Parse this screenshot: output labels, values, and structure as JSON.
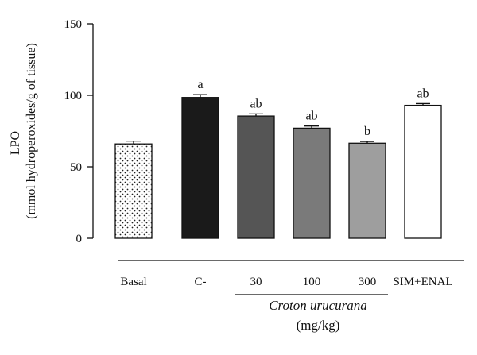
{
  "chart_data": {
    "type": "bar",
    "ylabel_line1": "LPO",
    "ylabel_line2": "(mmol hydroperoxides/g of tissue)",
    "ylim": [
      0,
      150
    ],
    "yticks": [
      0,
      50,
      100,
      150
    ],
    "categories": [
      "Basal",
      "C-",
      "30",
      "100",
      "300",
      "SIM+ENAL"
    ],
    "values": [
      66,
      98.5,
      85.5,
      77,
      66.5,
      93
    ],
    "errors": [
      2,
      2,
      1.5,
      1.5,
      1.2,
      1.2
    ],
    "annotations": [
      "",
      "a",
      "ab",
      "ab",
      "b",
      "ab"
    ],
    "fills": [
      "dotted",
      "#1a1a1a",
      "#555555",
      "#7a7a7a",
      "#9e9e9e",
      "#ffffff"
    ],
    "group_label_italic": "Croton urucurana",
    "group_label_unit": "(mg/kg)",
    "group_members": [
      "30",
      "100",
      "300"
    ]
  }
}
